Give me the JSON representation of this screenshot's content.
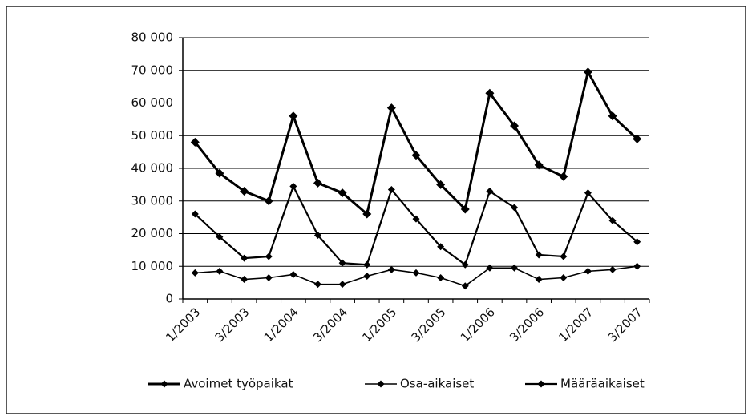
{
  "chart_data": {
    "type": "line",
    "categories": [
      "1/2003",
      null,
      "3/2003",
      null,
      "1/2004",
      null,
      "3/2004",
      null,
      "1/2005",
      null,
      "3/2005",
      null,
      "1/2006",
      null,
      "3/2006",
      null,
      "1/2007",
      null,
      "3/2007"
    ],
    "series": [
      {
        "name": "Avoimet työpaikat",
        "color": "#000000",
        "values": [
          48000,
          38500,
          33000,
          30000,
          56000,
          35500,
          32500,
          26000,
          58500,
          44000,
          35000,
          27500,
          63000,
          53000,
          41000,
          37500,
          69500,
          56000,
          49000
        ]
      },
      {
        "name": "Osa-aikaiset",
        "color": "#000000",
        "values": [
          8000,
          8500,
          6000,
          6500,
          7500,
          4500,
          4500,
          7000,
          9000,
          8000,
          6500,
          4000,
          9500,
          9500,
          6000,
          6500,
          8500,
          9000,
          10000
        ]
      },
      {
        "name": "Määräaikaiset",
        "color": "#000000",
        "values": [
          26000,
          19000,
          12500,
          13000,
          34500,
          19500,
          11000,
          10500,
          33500,
          24500,
          16000,
          10500,
          33000,
          28000,
          13500,
          13000,
          32500,
          24000,
          17500
        ]
      }
    ],
    "ylim": [
      0,
      80000
    ],
    "yticks": [
      0,
      {
        "value": 10000,
        "label": "10 000"
      },
      {
        "value": 20000,
        "label": "20 000"
      },
      {
        "value": 30000,
        "label": "30 000"
      },
      {
        "value": 40000,
        "label": "40 000"
      },
      {
        "value": 50000,
        "label": "50 000"
      },
      {
        "value": 60000,
        "label": "60 000"
      },
      {
        "value": 70000,
        "label": "70 000"
      },
      {
        "value": 80000,
        "label": "80 000"
      }
    ],
    "grid": true,
    "legend": "bottom"
  }
}
